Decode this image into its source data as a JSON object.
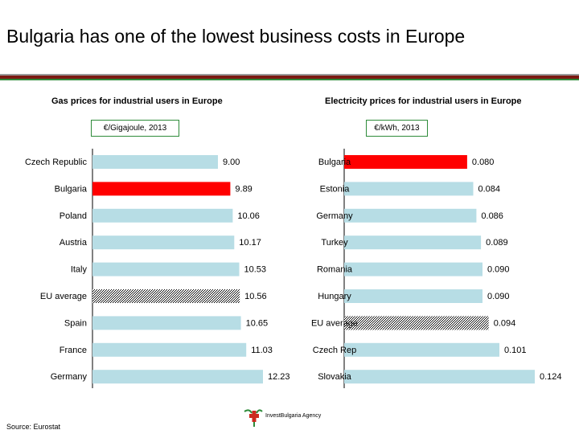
{
  "slide": {
    "title": "Bulgaria has one of the lowest business costs in Europe",
    "source": "Source: Eurostat",
    "logo_text": "InvestBulgaria Agency",
    "logo_icon": "cross-plant-logo-icon"
  },
  "colors": {
    "bar": "#b7dde5",
    "highlight": "#ff0000",
    "eu_pattern": "#000000",
    "accent_green": "#2e8b3a",
    "accent_red": "#7a1a12"
  },
  "chart_data": [
    {
      "type": "bar",
      "orientation": "horizontal",
      "title": "Gas prices for industrial users in Europe",
      "unit_label": "€/Gigajoule, 2013",
      "categories": [
        "Czech Republic",
        "Bulgaria",
        "Poland",
        "Austria",
        "Italy",
        "EU average",
        "Spain",
        "France",
        "Germany"
      ],
      "values": [
        9.0,
        9.89,
        10.06,
        10.17,
        10.53,
        10.56,
        10.65,
        11.03,
        12.23
      ],
      "value_labels": [
        "9.00",
        "9.89",
        "10.06",
        "10.17",
        "10.53",
        "10.56",
        "10.65",
        "11.03",
        "12.23"
      ],
      "highlight": "Bulgaria",
      "patterned": "EU average",
      "grid": false
    },
    {
      "type": "bar",
      "orientation": "horizontal",
      "title": "Electricity prices for industrial users in Europe",
      "unit_label": "€/kWh, 2013",
      "categories": [
        "Bulgaria",
        "Estonia",
        "Germany",
        "Turkey",
        "Romania",
        "Hungary",
        "EU average",
        "Czech Rep",
        "Slovakia"
      ],
      "values": [
        0.08,
        0.084,
        0.086,
        0.089,
        0.09,
        0.09,
        0.094,
        0.101,
        0.124
      ],
      "value_labels": [
        "0.080",
        "0.084",
        "0.086",
        "0.089",
        "0.090",
        "0.090",
        "0.094",
        "0.101",
        "0.124"
      ],
      "highlight": "Bulgaria",
      "patterned": "EU average",
      "grid": false
    }
  ]
}
